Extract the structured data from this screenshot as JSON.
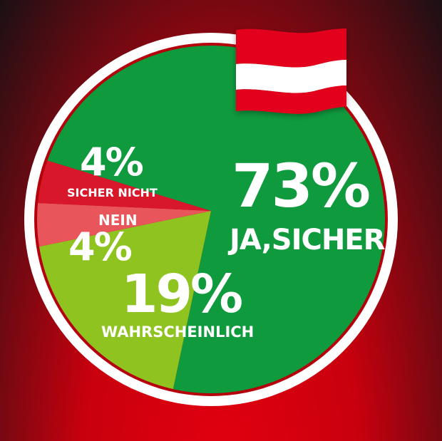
{
  "chart_data": {
    "type": "pie",
    "slices": [
      {
        "label": "JA,SICHER",
        "value": 73,
        "display": "73%",
        "color": "#0f9a3e"
      },
      {
        "label": "WAHRSCHEINLICH",
        "value": 19,
        "display": "19%",
        "color": "#8fc31f"
      },
      {
        "label": "NEIN",
        "value": 4,
        "display": "4%",
        "color": "#e8555a"
      },
      {
        "label": "SICHER NICHT",
        "value": 4,
        "display": "4%",
        "color": "#d9172a"
      }
    ]
  },
  "flag": {
    "name": "austria-flag",
    "colors": [
      "#e3001b",
      "#ffffff",
      "#e3001b"
    ]
  },
  "colors": {
    "ring": "#ffffff",
    "background_top": "#1a1014",
    "background_bottom": "#e3000f"
  }
}
